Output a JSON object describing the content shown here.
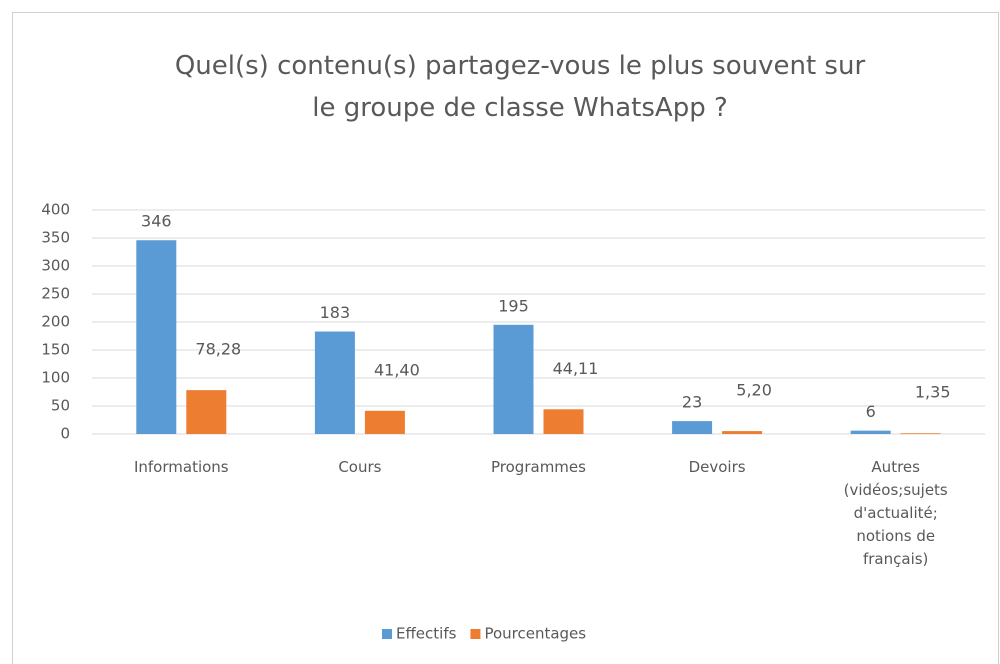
{
  "chart_data": {
    "type": "bar",
    "title": "Quel(s) contenu(s) partagez-vous le plus souvent sur le groupe de classe WhatsApp ?",
    "categories": [
      "Informations",
      "Cours",
      "Programmes",
      "Devoirs",
      "Autres (vidéos;sujets d'actualité; notions de français)"
    ],
    "series": [
      {
        "name": "Effectifs",
        "color": "#5b9bd5",
        "values": [
          346,
          183,
          195,
          23,
          6
        ]
      },
      {
        "name": "Pourcentages",
        "color": "#ed7d31",
        "values": [
          78.28,
          41.4,
          44.11,
          5.2,
          1.35
        ],
        "value_labels": [
          "78,28",
          "41,40",
          "44,11",
          "5,20",
          "1,35"
        ]
      }
    ],
    "ylim": [
      0,
      400
    ],
    "yticks": [
      0,
      50,
      100,
      150,
      200,
      250,
      300,
      350,
      400
    ],
    "grid": true,
    "legend": "bottom"
  }
}
